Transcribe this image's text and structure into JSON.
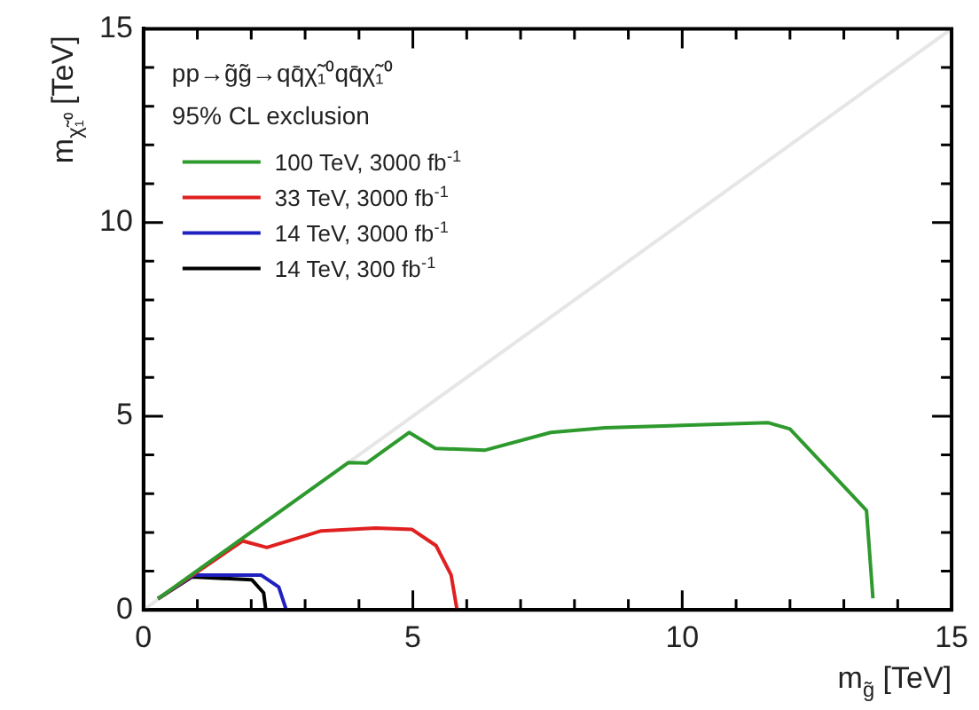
{
  "chart_data": {
    "type": "line",
    "xlabel": "m$_{g̃}$ [TeV]",
    "ylabel": "m$_{χ̃₁⁰}$ [TeV]",
    "annotations": [
      "pp→g̃g̃→qq̄χ̃₁⁰qq̄χ̃₁⁰",
      "95% CL exclusion"
    ],
    "xlim": [
      0,
      15
    ],
    "ylim": [
      0,
      15
    ],
    "xticks": [
      0,
      {
        "value": 1,
        "label": null
      },
      {
        "value": 2,
        "label": null
      },
      {
        "value": 3,
        "label": null
      },
      {
        "value": 4,
        "label": null
      },
      5,
      {
        "value": 6,
        "label": null
      },
      {
        "value": 7,
        "label": null
      },
      {
        "value": 8,
        "label": null
      },
      {
        "value": 9,
        "label": null
      },
      10,
      {
        "value": 11,
        "label": null
      },
      {
        "value": 12,
        "label": null
      },
      {
        "value": 13,
        "label": null
      },
      {
        "value": 14,
        "label": null
      },
      15
    ],
    "yticks": [
      0,
      {
        "value": 1,
        "label": null
      },
      {
        "value": 2,
        "label": null
      },
      {
        "value": 3,
        "label": null
      },
      {
        "value": 4,
        "label": null
      },
      5,
      {
        "value": 6,
        "label": null
      },
      {
        "value": 7,
        "label": null
      },
      {
        "value": 8,
        "label": null
      },
      {
        "value": 9,
        "label": null
      },
      10,
      {
        "value": 11,
        "label": null
      },
      {
        "value": 12,
        "label": null
      },
      {
        "value": 13,
        "label": null
      },
      {
        "value": 14,
        "label": null
      },
      15
    ],
    "grid": false,
    "legend": "top left",
    "marker": "none",
    "line_style": "solid",
    "series": [
      {
        "name": "100 TeV, 3000 fb$^{-1}$",
        "color": "#2e9a2e",
        "x": [
          0.27,
          1.84,
          3.8,
          4.14,
          4.93,
          5.42,
          6.33,
          7.56,
          8.57,
          11.6,
          12.0,
          13.42,
          13.54
        ],
        "values": [
          0.29,
          1.85,
          3.8,
          3.79,
          4.58,
          4.17,
          4.12,
          4.58,
          4.7,
          4.83,
          4.67,
          2.57,
          0.3
        ]
      },
      {
        "name": "33 TeV, 3000 fb$^{-1}$",
        "color": "#e02020",
        "x": [
          0.27,
          1.84,
          2.29,
          3.3,
          4.31,
          4.98,
          5.43,
          5.71,
          5.82
        ],
        "values": [
          0.29,
          1.78,
          1.61,
          2.04,
          2.11,
          2.08,
          1.66,
          0.9,
          0
        ]
      },
      {
        "name": "14 TeV, 3000 fb$^{-1}$",
        "color": "#2020c0",
        "x": [
          0.27,
          0.94,
          2.18,
          2.51,
          2.65
        ],
        "values": [
          0.29,
          0.9,
          0.9,
          0.59,
          0
        ]
      },
      {
        "name": "14 TeV, 300 fb$^{-1}$",
        "color": "#000000",
        "x": [
          0.27,
          0.9,
          2.01,
          2.23,
          2.27
        ],
        "values": [
          0.29,
          0.85,
          0.78,
          0.44,
          0
        ]
      },
      {
        "color": "#e6e6e6",
        "x": [
          0,
          15
        ],
        "values": [
          0,
          15
        ]
      }
    ]
  }
}
